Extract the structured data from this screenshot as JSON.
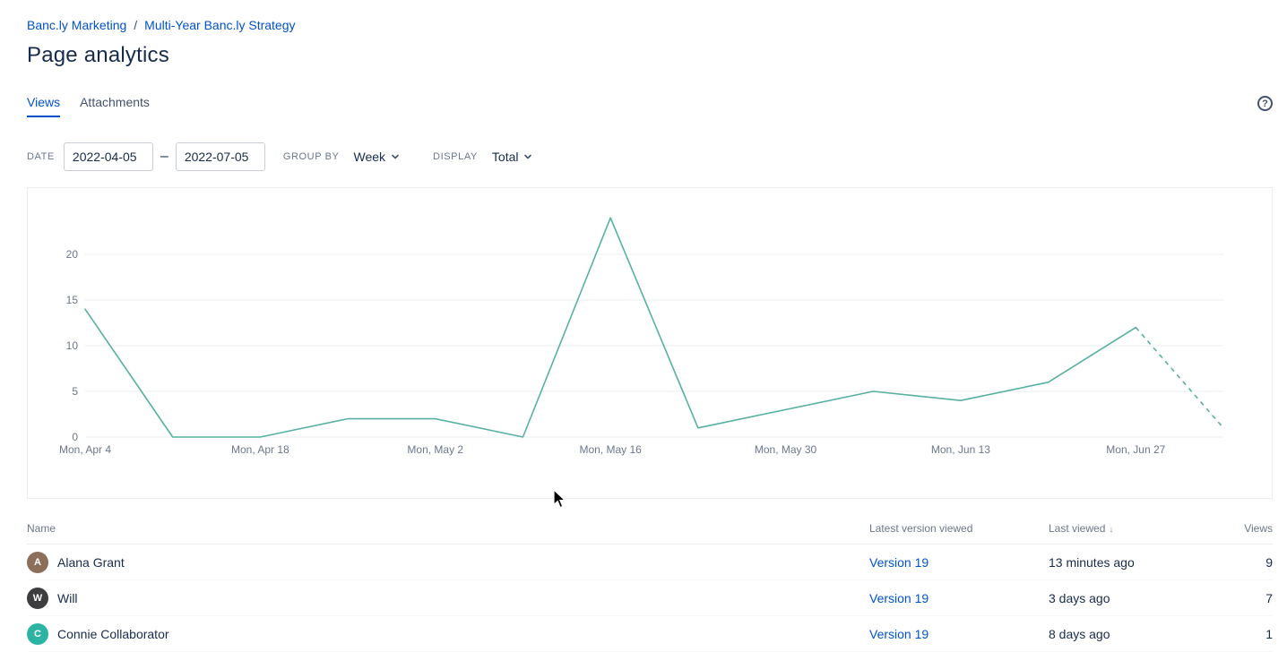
{
  "breadcrumb": {
    "items": [
      {
        "label": "Banc.ly Marketing"
      },
      {
        "label": "Multi-Year Banc.ly Strategy"
      }
    ],
    "separator": "/"
  },
  "page_title": "Page analytics",
  "tabs": [
    {
      "label": "Views",
      "active": true
    },
    {
      "label": "Attachments",
      "active": false
    }
  ],
  "icons": {
    "help": "?"
  },
  "filters": {
    "date_label": "DATE",
    "date_from": "2022-04-05",
    "date_to": "2022-07-05",
    "range_separator": "–",
    "group_by_label": "GROUP BY",
    "group_by_value": "Week",
    "display_label": "DISPLAY",
    "display_value": "Total"
  },
  "chart_data": {
    "type": "line",
    "title": "",
    "x": [
      "Mon, Apr 4",
      "Mon, Apr 11",
      "Mon, Apr 18",
      "Mon, Apr 25",
      "Mon, May 2",
      "Mon, May 9",
      "Mon, May 16",
      "Mon, May 23",
      "Mon, May 30",
      "Mon, Jun 6",
      "Mon, Jun 13",
      "Mon, Jun 20",
      "Mon, Jun 27",
      "Mon, Jul 4"
    ],
    "values": [
      14,
      0,
      0,
      2,
      2,
      0,
      24,
      1,
      3,
      5,
      4,
      6,
      12,
      1
    ],
    "x_tick_labels": [
      "Mon, Apr 4",
      "Mon, Apr 18",
      "Mon, May 2",
      "Mon, May 16",
      "Mon, May 30",
      "Mon, Jun 13",
      "Mon, Jun 27"
    ],
    "y_ticks": [
      0,
      5,
      10,
      15,
      20
    ],
    "ylim": [
      0,
      25
    ],
    "grid": true,
    "legend": "none",
    "line_color": "#57B0A1",
    "dashed_last_segment": true
  },
  "table": {
    "headers": {
      "name": "Name",
      "version": "Latest version viewed",
      "last_viewed": "Last viewed",
      "views": "Views"
    },
    "sort_icon": "↓",
    "rows": [
      {
        "name": "Alana Grant",
        "initial": "A",
        "avatar_color": "#8D6E5A",
        "version": "Version 19",
        "last_viewed": "13 minutes ago",
        "views": "9"
      },
      {
        "name": "Will",
        "initial": "W",
        "avatar_color": "#3D3D3F",
        "version": "Version 19",
        "last_viewed": "3 days ago",
        "views": "7"
      },
      {
        "name": "Connie Collaborator",
        "initial": "C",
        "avatar_color": "#2BB4A4",
        "version": "Version 19",
        "last_viewed": "8 days ago",
        "views": "1"
      }
    ]
  }
}
